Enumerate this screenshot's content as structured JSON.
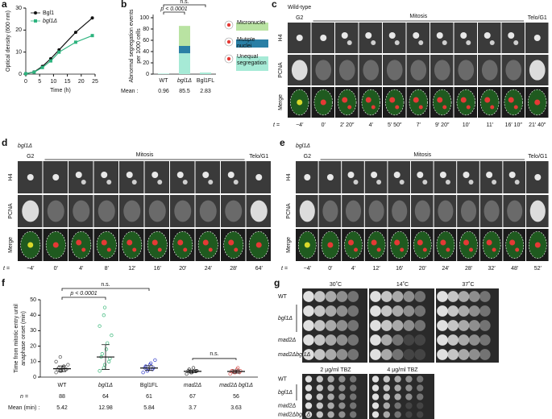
{
  "chart_data": [
    {
      "type": "line",
      "panel": "a",
      "xlabel": "Time (h)",
      "ylabel": "Optical density (600 nm)",
      "x": [
        0,
        3,
        6,
        9,
        12,
        18,
        24
      ],
      "xlim": [
        0,
        25
      ],
      "xticks": [
        0,
        5,
        10,
        15,
        20,
        25
      ],
      "ylim": [
        0,
        30
      ],
      "yticks": [
        0,
        10,
        20,
        30
      ],
      "series": [
        {
          "name": "Bgl1",
          "color": "#111111",
          "values": [
            0.2,
            1,
            3.5,
            7,
            11,
            19,
            25.5
          ]
        },
        {
          "name": "bgl1Δ",
          "color": "#2db37e",
          "values": [
            0.2,
            0.9,
            3,
            6,
            10,
            14.5,
            17.5
          ]
        }
      ]
    },
    {
      "type": "stacked-bar",
      "panel": "b",
      "ylabel": [
        "Abnormal segregation events",
        "per 1000 cells"
      ],
      "categories": [
        "WT",
        "bgl1Δ",
        "Bgl1FL"
      ],
      "ylim": [
        0,
        100
      ],
      "yticks": [
        0,
        20,
        40,
        60,
        80,
        100
      ],
      "series": [
        {
          "name": "Unequal segregation",
          "color": "#a6ead6",
          "values": [
            0.96,
            37,
            2.83
          ]
        },
        {
          "name": "Mutiple nuclei",
          "color": "#2a7fa5",
          "values": [
            0,
            13,
            0
          ]
        },
        {
          "name": "Micronuclei",
          "color": "#b9e3a2",
          "values": [
            0,
            35.5,
            0
          ]
        }
      ],
      "annotations": [
        "n.s.",
        "p < 0.0001"
      ],
      "mean_label": "Mean :",
      "means": [
        0.96,
        85.5,
        2.83
      ]
    },
    {
      "type": "strip",
      "panel": "f",
      "ylabel": [
        "Time from mitotic entry until",
        "anaphase onset (min)"
      ],
      "categories": [
        "WT",
        "bgl1Δ",
        "Bgl1FL",
        "mad2Δ",
        "mad2Δ bgl1Δ"
      ],
      "ylim": [
        0,
        50
      ],
      "yticks": [
        0,
        10,
        20,
        30,
        40,
        50
      ],
      "colors": [
        "#555555",
        "#3ab87a",
        "#2b35c8",
        "#333333",
        "#d9534f"
      ],
      "points": [
        [
          3,
          4,
          4,
          5,
          5,
          5,
          6,
          6,
          7,
          8,
          10,
          13
        ],
        [
          4,
          6,
          8,
          10,
          12,
          13,
          15,
          18,
          22,
          27,
          33,
          40,
          45
        ],
        [
          3,
          4,
          5,
          5,
          6,
          6,
          7,
          8,
          9,
          11
        ],
        [
          2,
          3,
          3,
          4,
          4,
          4,
          5,
          6
        ],
        [
          2,
          3,
          3,
          3,
          4,
          4,
          4,
          5,
          6
        ]
      ],
      "means": [
        5.42,
        12.98,
        5.84,
        3.7,
        3.63
      ],
      "errors": [
        1.8,
        8,
        1.5,
        0.9,
        1
      ],
      "annotations": [
        "n.s.",
        "p < 0.0001",
        "n.s."
      ],
      "n_label": "n =",
      "n": [
        88,
        64,
        61,
        67,
        56
      ],
      "mean_label": "Mean (min) :"
    }
  ],
  "panels": {
    "c": {
      "letter": "c",
      "strain": "Wild-type",
      "phases": [
        "G2",
        "Mitosis",
        "Telo/G1"
      ],
      "rows": [
        "H4",
        "PCNA",
        "Merge"
      ],
      "time_label": "t =",
      "times": [
        "−4′",
        "0′",
        "2′ 20″",
        "4′",
        "5′ 50″",
        "7′",
        "9′ 20″",
        "10′",
        "11′",
        "16′ 10″",
        "21′ 40″"
      ]
    },
    "d": {
      "letter": "d",
      "strain": "bgl1Δ",
      "phases": [
        "G2",
        "Mitosis",
        "Telo/G1"
      ],
      "rows": [
        "H4",
        "PCNA",
        "Merge"
      ],
      "time_label": "t =",
      "times": [
        "−4′",
        "0′",
        "4′",
        "8′",
        "12′",
        "16′",
        "20′",
        "24′",
        "28′",
        "64′"
      ]
    },
    "e": {
      "letter": "e",
      "strain": "bgl1Δ",
      "phases": [
        "G2",
        "Mitosis",
        "Telo/G1"
      ],
      "rows": [
        "H4",
        "PCNA",
        "Merge"
      ],
      "time_label": "t =",
      "times": [
        "−4′",
        "0′",
        "4′",
        "12′",
        "16′",
        "20′",
        "24′",
        "28′",
        "32′",
        "48′",
        "52′"
      ]
    },
    "g": {
      "letter": "g",
      "top": [
        "30˚C",
        "14˚C",
        "37˚C"
      ],
      "bottom": [
        "2 μg/ml TBZ",
        "4 μg/ml TBZ"
      ],
      "strains": [
        "WT",
        "bgl1Δ",
        "mad2Δ",
        "mad2Δbgl1Δ"
      ]
    }
  }
}
